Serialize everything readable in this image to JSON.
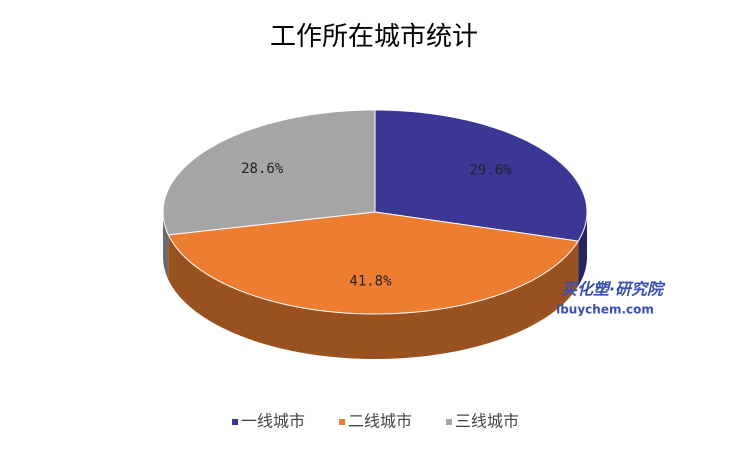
{
  "chart_data": {
    "type": "pie3d",
    "title": "工作所在城市统计",
    "categories": [
      "一线城市",
      "二线城市",
      "三线城市"
    ],
    "values": [
      29.6,
      41.8,
      28.6
    ],
    "value_labels": [
      "29.6%",
      "41.8%",
      "28.6%"
    ],
    "colors": [
      "#3a3795",
      "#ed7d31",
      "#a5a5a5"
    ],
    "legend": "bottom"
  },
  "watermark": {
    "brand": "买化塑·研究院",
    "site": "ibuychem.com"
  }
}
